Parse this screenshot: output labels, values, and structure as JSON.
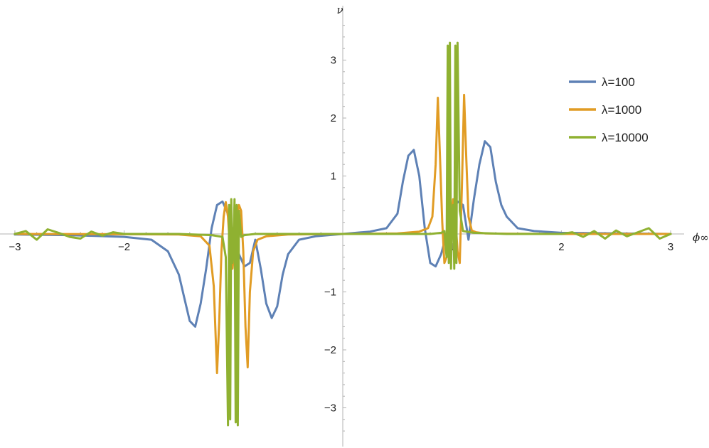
{
  "chart_data": {
    "type": "line",
    "xlabel": "ϕ∞",
    "ylabel": "ν",
    "xlim": [
      -3.05,
      3.05
    ],
    "ylim": [
      -3.6,
      3.75
    ],
    "x_ticks": [
      -3,
      -2,
      -1,
      1,
      2,
      3
    ],
    "x_tick_labels": [
      "−3",
      "−2",
      "−1",
      "1",
      "2",
      "3"
    ],
    "y_ticks": [
      -3,
      -2,
      -1,
      1,
      2,
      3
    ],
    "y_tick_labels": [
      "−3",
      "−2",
      "−1",
      "1",
      "2",
      "3"
    ],
    "grid": false,
    "legend_position": "right",
    "series": [
      {
        "name": "λ=100",
        "color": "#5E81B5",
        "x": [
          -3.0,
          -2.5,
          -2.0,
          -1.75,
          -1.6,
          -1.5,
          -1.45,
          -1.4,
          -1.35,
          -1.3,
          -1.25,
          -1.2,
          -1.15,
          -1.1,
          -1.05,
          -1.0,
          -0.95,
          -0.9,
          -0.85,
          -0.8,
          -0.75,
          -0.7,
          -0.65,
          -0.6,
          -0.55,
          -0.5,
          -0.4,
          -0.25,
          0.0,
          0.25,
          0.4,
          0.5,
          0.55,
          0.6,
          0.65,
          0.7,
          0.75,
          0.8,
          0.85,
          0.9,
          0.95,
          1.0,
          1.05,
          1.1,
          1.15,
          1.2,
          1.25,
          1.3,
          1.35,
          1.4,
          1.45,
          1.5,
          1.6,
          1.75,
          2.0,
          2.5,
          3.0
        ],
        "y": [
          -0.01,
          -0.02,
          -0.05,
          -0.1,
          -0.3,
          -0.7,
          -1.1,
          -1.5,
          -1.6,
          -1.2,
          -0.6,
          0.1,
          0.5,
          0.56,
          0.35,
          0.0,
          -0.35,
          -0.56,
          -0.5,
          -0.1,
          -0.6,
          -1.2,
          -1.45,
          -1.25,
          -0.7,
          -0.35,
          -0.1,
          -0.04,
          0.0,
          0.04,
          0.1,
          0.35,
          0.9,
          1.35,
          1.45,
          1.0,
          0.1,
          -0.5,
          -0.56,
          -0.35,
          0.0,
          0.35,
          0.56,
          0.5,
          -0.1,
          0.6,
          1.2,
          1.6,
          1.5,
          0.9,
          0.5,
          0.3,
          0.1,
          0.05,
          0.02,
          0.01,
          0.0
        ]
      },
      {
        "name": "λ=1000",
        "color": "#E19C24",
        "x": [
          -3.0,
          -2.0,
          -1.5,
          -1.3,
          -1.22,
          -1.18,
          -1.15,
          -1.13,
          -1.11,
          -1.09,
          -1.07,
          -1.05,
          -1.03,
          -1.01,
          -0.99,
          -0.97,
          -0.95,
          -0.93,
          -0.91,
          -0.89,
          -0.87,
          -0.85,
          -0.82,
          -0.78,
          -0.7,
          -0.5,
          0.0,
          0.5,
          0.7,
          0.78,
          0.82,
          0.85,
          0.87,
          0.89,
          0.91,
          0.93,
          0.95,
          0.97,
          0.99,
          1.01,
          1.03,
          1.05,
          1.07,
          1.09,
          1.11,
          1.13,
          1.15,
          1.18,
          1.22,
          1.3,
          1.5,
          2.0,
          3.0
        ],
        "y": [
          0.0,
          -0.005,
          -0.01,
          -0.04,
          -0.2,
          -0.9,
          -2.4,
          -1.5,
          -0.3,
          0.3,
          0.55,
          0.3,
          -0.3,
          -0.6,
          -0.3,
          0.3,
          0.5,
          0.4,
          -0.3,
          -1.6,
          -2.3,
          -1.0,
          -0.3,
          -0.1,
          -0.04,
          -0.01,
          0.0,
          0.01,
          0.04,
          0.1,
          0.3,
          1.2,
          2.35,
          1.3,
          0.2,
          -0.5,
          -0.4,
          -0.3,
          0.3,
          0.6,
          0.3,
          -0.3,
          -0.5,
          0.8,
          2.4,
          1.3,
          0.3,
          0.06,
          0.03,
          0.01,
          0.005,
          0.0,
          0.0
        ]
      },
      {
        "name": "λ=10000",
        "color": "#8FB131",
        "x": [
          -3.0,
          -2.9,
          -2.8,
          -2.7,
          -2.6,
          -2.5,
          -2.4,
          -2.3,
          -2.2,
          -2.1,
          -2.0,
          -1.8,
          -1.5,
          -1.2,
          -1.1,
          -1.07,
          -1.05,
          -1.04,
          -1.03,
          -1.02,
          -1.01,
          -1.0,
          -0.99,
          -0.98,
          -0.97,
          -0.96,
          -0.95,
          -0.93,
          -0.9,
          -0.8,
          -0.5,
          0.0,
          0.5,
          0.8,
          0.9,
          0.93,
          0.95,
          0.96,
          0.97,
          0.98,
          0.99,
          1.0,
          1.01,
          1.02,
          1.03,
          1.04,
          1.05,
          1.07,
          1.1,
          1.2,
          1.5,
          1.8,
          2.0,
          2.1,
          2.2,
          2.3,
          2.4,
          2.5,
          2.6,
          2.7,
          2.8,
          2.9,
          3.0
        ],
        "y": [
          0.0,
          0.05,
          -0.1,
          0.08,
          0.02,
          -0.05,
          -0.08,
          0.04,
          -0.03,
          0.03,
          0.0,
          0.0,
          0.0,
          -0.02,
          -0.05,
          -0.4,
          -3.3,
          0.5,
          -3.2,
          0.6,
          -0.5,
          -0.3,
          0.6,
          -3.25,
          0.5,
          -3.3,
          0.4,
          -0.05,
          -0.02,
          0.0,
          0.0,
          0.0,
          0.0,
          0.0,
          0.02,
          0.05,
          -0.4,
          3.25,
          -0.5,
          3.3,
          -0.6,
          0.3,
          0.5,
          -0.6,
          3.25,
          -0.5,
          3.3,
          0.4,
          0.05,
          0.02,
          0.0,
          0.0,
          0.0,
          0.03,
          -0.05,
          0.05,
          -0.08,
          0.06,
          -0.04,
          0.03,
          0.1,
          -0.08,
          0.0
        ]
      }
    ]
  }
}
